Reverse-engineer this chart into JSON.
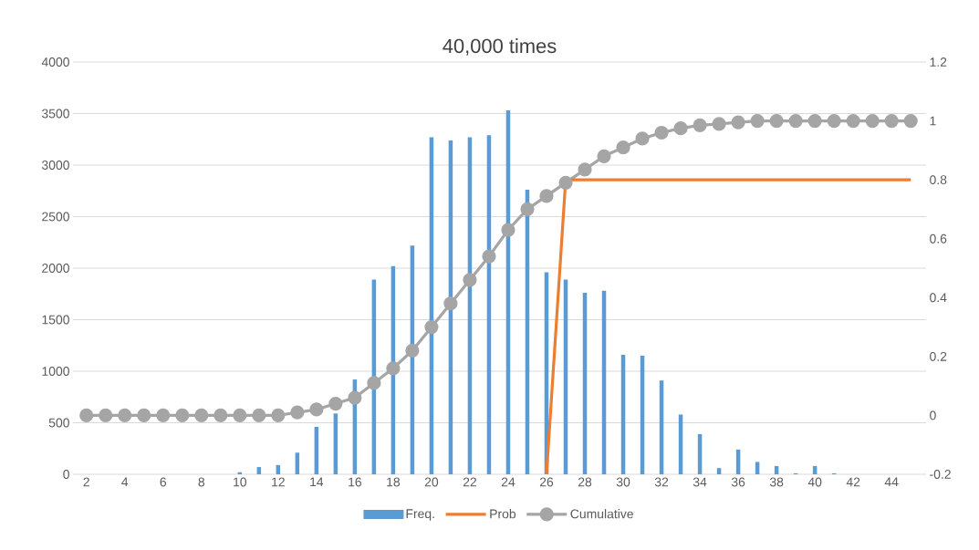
{
  "chart_data": {
    "type": "bar",
    "title": "40,000 times",
    "categories": [
      "2",
      null,
      "4",
      null,
      "6",
      null,
      "8",
      null,
      "10",
      null,
      "12",
      null,
      "14",
      null,
      "16",
      null,
      "18",
      null,
      "20",
      null,
      "22",
      null,
      "24",
      null,
      "26",
      null,
      "28",
      null,
      "30",
      null,
      "32",
      null,
      "34",
      null,
      "36",
      null,
      "38",
      null,
      "40",
      null,
      "42",
      null,
      "44",
      null
    ],
    "series": [
      {
        "name": "Freq.",
        "color": "#5b9bd5",
        "values": [
          0,
          0,
          0,
          0,
          0,
          0,
          0,
          0,
          20,
          70,
          90,
          210,
          460,
          590,
          920,
          1890,
          2020,
          2220,
          3270,
          3240,
          3270,
          3290,
          3530,
          2760,
          1960,
          1890,
          1760,
          1780,
          1160,
          1150,
          910,
          580,
          390,
          60,
          240,
          120,
          80,
          10,
          80,
          10,
          0,
          0,
          0,
          0
        ]
      },
      {
        "name": "Prob",
        "type": "line",
        "axis": "y2",
        "color": "#ed7d31",
        "marker": "none",
        "values": [
          null,
          null,
          null,
          null,
          null,
          null,
          null,
          null,
          null,
          null,
          null,
          null,
          null,
          null,
          null,
          null,
          null,
          null,
          null,
          null,
          null,
          null,
          null,
          null,
          -0.2,
          0.8,
          0.8,
          0.8,
          0.8,
          0.8,
          0.8,
          0.8,
          0.8,
          0.8,
          0.8,
          0.8,
          0.8,
          0.8,
          0.8,
          0.8,
          0.8,
          0.8,
          0.8,
          0.8
        ]
      },
      {
        "name": "Cumulative",
        "type": "line",
        "axis": "y2",
        "color": "#a5a5a5",
        "marker": "circle",
        "values": [
          0,
          0,
          0,
          0,
          0,
          0,
          0,
          0,
          0,
          0,
          0,
          0.01,
          0.02,
          0.04,
          0.06,
          0.11,
          0.16,
          0.22,
          0.3,
          0.38,
          0.46,
          0.54,
          0.63,
          0.7,
          0.745,
          0.79,
          0.835,
          0.88,
          0.91,
          0.94,
          0.96,
          0.975,
          0.985,
          0.99,
          0.995,
          1,
          1,
          1,
          1,
          1,
          1,
          1,
          1,
          1
        ]
      }
    ],
    "ylim": [
      0,
      4000
    ],
    "yticks": [
      0,
      500,
      1000,
      1500,
      2000,
      2500,
      3000,
      3500,
      4000
    ],
    "y2lim": [
      -0.2,
      1.2
    ],
    "y2ticks": [
      -0.2,
      0,
      0.2,
      0.4,
      0.6,
      0.8,
      1,
      1.2
    ],
    "grid": "y",
    "legend": "bottom"
  }
}
